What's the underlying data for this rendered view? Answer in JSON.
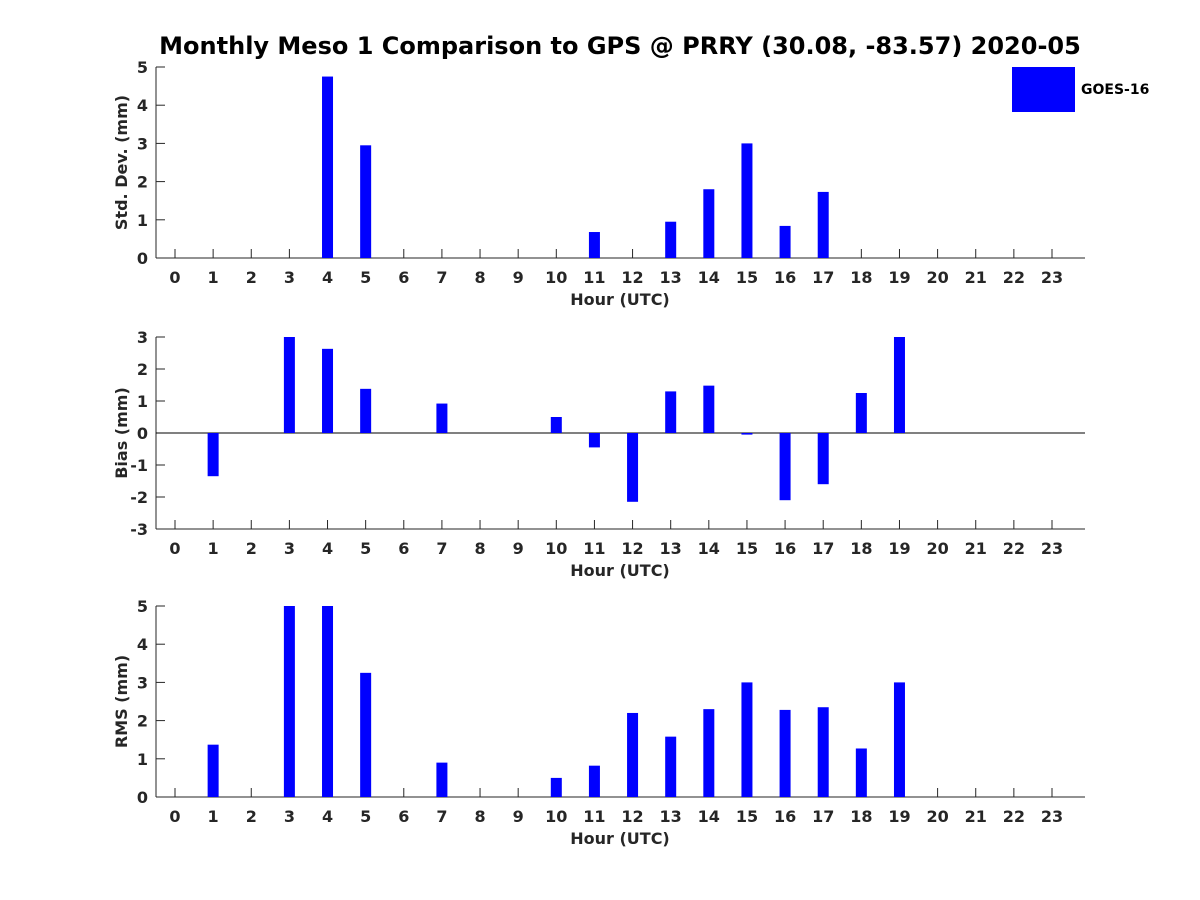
{
  "chart_data": {
    "title": "Monthly Meso 1 Comparison to GPS @ PRRY (30.08, -83.57) 2020-05",
    "legend": {
      "label": "GOES-16",
      "placement": "top-right",
      "color": "#0000ff"
    },
    "bar_color": "#0000ff",
    "panels": [
      {
        "type": "bar",
        "ylabel": "Std. Dev. (mm)",
        "xlabel": "Hour (UTC)",
        "ylim": [
          0,
          5
        ],
        "yticks": [
          0,
          1,
          2,
          3,
          4,
          5
        ],
        "categories": [
          "0",
          "1",
          "2",
          "3",
          "4",
          "5",
          "6",
          "7",
          "8",
          "9",
          "10",
          "11",
          "12",
          "13",
          "14",
          "15",
          "16",
          "17",
          "18",
          "19",
          "20",
          "21",
          "22",
          "23"
        ],
        "values": [
          null,
          null,
          null,
          null,
          4.75,
          2.95,
          null,
          null,
          null,
          null,
          null,
          0.68,
          null,
          0.95,
          1.8,
          3.0,
          0.84,
          1.73,
          null,
          null,
          null,
          null,
          null,
          null
        ]
      },
      {
        "type": "bar",
        "ylabel": "Bias (mm)",
        "xlabel": "Hour (UTC)",
        "ylim": [
          -3,
          3
        ],
        "yticks": [
          -3,
          -2,
          -1,
          0,
          1,
          2,
          3
        ],
        "zero_line": true,
        "categories": [
          "0",
          "1",
          "2",
          "3",
          "4",
          "5",
          "6",
          "7",
          "8",
          "9",
          "10",
          "11",
          "12",
          "13",
          "14",
          "15",
          "16",
          "17",
          "18",
          "19",
          "20",
          "21",
          "22",
          "23"
        ],
        "values": [
          null,
          -1.35,
          null,
          3.0,
          2.63,
          1.38,
          null,
          0.92,
          null,
          null,
          0.5,
          -0.45,
          -2.15,
          1.3,
          1.48,
          -0.05,
          -2.1,
          -1.6,
          1.25,
          3.0,
          null,
          null,
          null,
          null
        ]
      },
      {
        "type": "bar",
        "ylabel": "RMS (mm)",
        "xlabel": "Hour (UTC)",
        "ylim": [
          0,
          5
        ],
        "yticks": [
          0,
          1,
          2,
          3,
          4,
          5
        ],
        "categories": [
          "0",
          "1",
          "2",
          "3",
          "4",
          "5",
          "6",
          "7",
          "8",
          "9",
          "10",
          "11",
          "12",
          "13",
          "14",
          "15",
          "16",
          "17",
          "18",
          "19",
          "20",
          "21",
          "22",
          "23"
        ],
        "values": [
          null,
          1.37,
          null,
          5.0,
          5.0,
          3.25,
          null,
          0.9,
          null,
          null,
          0.5,
          0.82,
          2.2,
          1.58,
          2.3,
          3.0,
          2.28,
          2.35,
          1.27,
          3.0,
          null,
          null,
          null,
          null
        ]
      }
    ]
  }
}
